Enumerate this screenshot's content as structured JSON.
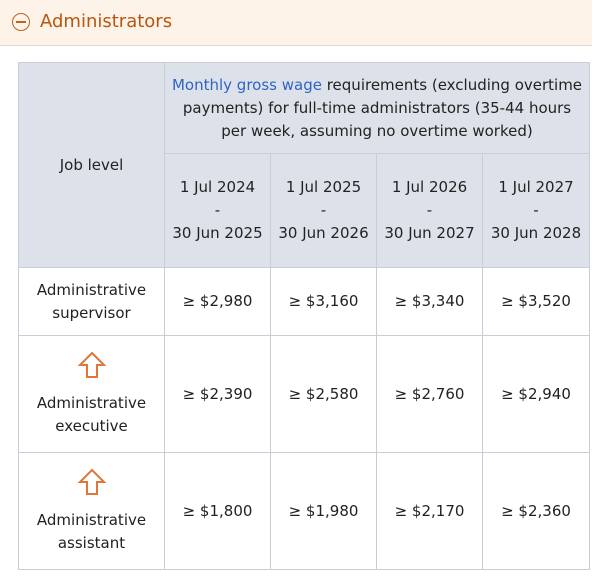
{
  "section": {
    "title": "Administrators"
  },
  "table": {
    "job_level_header": "Job level",
    "caption_link": "Monthly gross wage",
    "caption_rest": " requirements (excluding overtime payments) for full-time administrators (35-44 hours per week, assuming no overtime worked)",
    "periods": [
      {
        "start": "1 Jul 2024",
        "sep": "-",
        "end": "30 Jun 2025"
      },
      {
        "start": "1 Jul 2025",
        "sep": "-",
        "end": "30 Jun 2026"
      },
      {
        "start": "1 Jul 2026",
        "sep": "-",
        "end": "30 Jun 2027"
      },
      {
        "start": "1 Jul 2027",
        "sep": "-",
        "end": "30 Jun 2028"
      }
    ],
    "rows": [
      {
        "level": "Administrative supervisor",
        "wages": [
          "≥ $2,980",
          "≥ $3,160",
          "≥ $3,340",
          "≥ $3,520"
        ]
      },
      {
        "level": "Administrative executive",
        "wages": [
          "≥ $2,390",
          "≥ $2,580",
          "≥ $2,760",
          "≥ $2,940"
        ]
      },
      {
        "level": "Administrative assistant",
        "wages": [
          "≥ $1,800",
          "≥ $1,980",
          "≥ $2,170",
          "≥ $2,360"
        ]
      }
    ]
  },
  "colors": {
    "accent": "#c0621d",
    "header_bg": "#dde2ea",
    "link": "#2f64c4"
  }
}
